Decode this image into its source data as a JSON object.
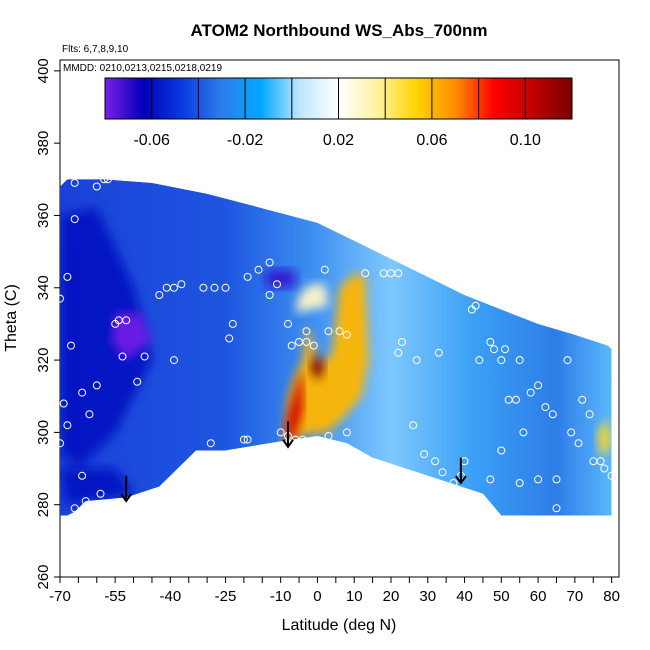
{
  "chart_data": {
    "type": "heatmap",
    "title": "ATOM2 Northbound WS_Abs_700nm",
    "flights_label": "Flts: 6,7,8,9,10",
    "dates_label": "MMDD: 0210,0213,0215,0218,0219",
    "xlabel": "Latitude (deg N)",
    "ylabel": "Theta (C)",
    "xlim": [
      -70,
      82
    ],
    "ylim": [
      260,
      403
    ],
    "x_ticks": [
      -70,
      -55,
      -40,
      -25,
      -10,
      0,
      10,
      20,
      30,
      40,
      50,
      60,
      70,
      80
    ],
    "x_tick_labels": [
      "-70",
      "-55",
      "-40",
      "-25",
      "-10",
      "0",
      "10",
      "20",
      "30",
      "40",
      "50",
      "60",
      "70",
      "80"
    ],
    "y_ticks": [
      260,
      280,
      300,
      320,
      340,
      360,
      380,
      400
    ],
    "y_tick_labels": [
      "260",
      "280",
      "300",
      "320",
      "340",
      "360",
      "380",
      "400"
    ],
    "colorbar": {
      "range": [
        -0.08,
        0.12
      ],
      "ticks": [
        -0.06,
        -0.02,
        0.02,
        0.06,
        0.1
      ],
      "tick_labels": [
        "-0.06",
        "-0.02",
        "0.02",
        "0.06",
        "0.10"
      ],
      "colors": [
        "#7a1fe8",
        "#0000b8",
        "#0a3ce0",
        "#2e7de8",
        "#00a8ff",
        "#bfe6ff",
        "#ffffff",
        "#fff2a0",
        "#ffd400",
        "#ff8c00",
        "#ff0000",
        "#c00000",
        "#7a0000"
      ]
    },
    "upper_boundary": [
      [
        -70,
        368
      ],
      [
        -68,
        370
      ],
      [
        -58,
        370
      ],
      [
        -45,
        369
      ],
      [
        -30,
        366
      ],
      [
        -15,
        362
      ],
      [
        0,
        358
      ],
      [
        10,
        353
      ],
      [
        20,
        348
      ],
      [
        30,
        343
      ],
      [
        40,
        338
      ],
      [
        50,
        334
      ],
      [
        60,
        330
      ],
      [
        70,
        327
      ],
      [
        79,
        324
      ],
      [
        80,
        323
      ]
    ],
    "lower_boundary": [
      [
        80,
        277
      ],
      [
        50,
        277
      ],
      [
        45,
        283
      ],
      [
        30,
        288
      ],
      [
        15,
        293
      ],
      [
        8,
        297
      ],
      [
        0,
        299
      ],
      [
        -10,
        297.5
      ],
      [
        -25,
        295
      ],
      [
        -33,
        295
      ],
      [
        -43,
        285
      ],
      [
        -52,
        282
      ],
      [
        -63,
        281
      ],
      [
        -66,
        278
      ],
      [
        -68,
        277
      ],
      [
        -70,
        277
      ]
    ],
    "hot_patches": [
      {
        "polygon": [
          [
            -9,
            297
          ],
          [
            -8,
            310
          ],
          [
            -6,
            316
          ],
          [
            -4,
            320
          ],
          [
            -3,
            330
          ],
          [
            -1,
            324
          ],
          [
            0,
            318
          ],
          [
            4,
            322
          ],
          [
            6,
            340
          ],
          [
            10,
            344
          ],
          [
            13,
            343
          ],
          [
            14,
            320
          ],
          [
            12,
            310
          ],
          [
            8,
            305
          ],
          [
            3,
            300
          ],
          [
            -3,
            299.5
          ]
        ],
        "value": 0.06
      },
      {
        "polygon": [
          [
            -9,
            298
          ],
          [
            -8,
            305
          ],
          [
            -6,
            312
          ],
          [
            -4,
            318
          ],
          [
            -4,
            306
          ],
          [
            -6,
            299
          ]
        ],
        "value": 0.1
      },
      {
        "polygon": [
          [
            -2,
            318
          ],
          [
            0,
            322
          ],
          [
            2,
            318
          ],
          [
            0,
            314
          ]
        ],
        "value": 0.12
      },
      {
        "polygon": [
          [
            76,
            300
          ],
          [
            79,
            304
          ],
          [
            80,
            296
          ],
          [
            77,
            293
          ]
        ],
        "value": 0.05
      },
      {
        "polygon": [
          [
            -6,
            333
          ],
          [
            -5,
            338
          ],
          [
            -2,
            341
          ],
          [
            2,
            341
          ],
          [
            3,
            335
          ]
        ],
        "value": 0.03
      }
    ],
    "cold_patches": [
      {
        "polygon": [
          [
            -70,
            360
          ],
          [
            -60,
            362
          ],
          [
            -50,
            340
          ],
          [
            -45,
            320
          ],
          [
            -55,
            300
          ],
          [
            -65,
            290
          ],
          [
            -70,
            295
          ]
        ],
        "value": -0.06
      },
      {
        "polygon": [
          [
            -55,
            333
          ],
          [
            -48,
            333
          ],
          [
            -45,
            325
          ],
          [
            -52,
            320
          ],
          [
            -56,
            325
          ]
        ],
        "value": -0.08
      },
      {
        "polygon": [
          [
            -14,
            345
          ],
          [
            -6,
            345
          ],
          [
            -6,
            340
          ],
          [
            -14,
            340
          ]
        ],
        "value": -0.07
      },
      {
        "polygon": [
          [
            -70,
            290
          ],
          [
            -55,
            290
          ],
          [
            -50,
            283
          ],
          [
            -68,
            280
          ]
        ],
        "value": -0.06
      }
    ],
    "points": [
      [
        -66,
        369
      ],
      [
        -58,
        370
      ],
      [
        -60,
        368
      ],
      [
        -57,
        370
      ],
      [
        -66,
        359
      ],
      [
        -68,
        343
      ],
      [
        -70,
        337
      ],
      [
        -67,
        324
      ],
      [
        -69,
        308
      ],
      [
        -68,
        302
      ],
      [
        -70,
        297
      ],
      [
        -64,
        311
      ],
      [
        -62,
        305
      ],
      [
        -60,
        313
      ],
      [
        -64,
        288
      ],
      [
        -59,
        283
      ],
      [
        -63,
        281
      ],
      [
        -66,
        279
      ],
      [
        -54,
        331
      ],
      [
        -52,
        331
      ],
      [
        -55,
        330
      ],
      [
        -53,
        321
      ],
      [
        -47,
        321
      ],
      [
        -49,
        314
      ],
      [
        -43,
        338
      ],
      [
        -41,
        340
      ],
      [
        -39,
        340
      ],
      [
        -37,
        341
      ],
      [
        -31,
        340
      ],
      [
        -28,
        340
      ],
      [
        -25,
        340
      ],
      [
        -39,
        320
      ],
      [
        -29,
        297
      ],
      [
        -24,
        326
      ],
      [
        -23,
        330
      ],
      [
        -19,
        343
      ],
      [
        -16,
        345
      ],
      [
        -13,
        347
      ],
      [
        -13,
        338
      ],
      [
        -19,
        298
      ],
      [
        -8,
        330
      ],
      [
        -7,
        324
      ],
      [
        -5,
        325
      ],
      [
        -3,
        325
      ],
      [
        -1,
        324
      ],
      [
        -3,
        328
      ],
      [
        2,
        345
      ],
      [
        3,
        328
      ],
      [
        6,
        328
      ],
      [
        8,
        327
      ],
      [
        13,
        344
      ],
      [
        18,
        344
      ],
      [
        20,
        344
      ],
      [
        22,
        344
      ],
      [
        -11,
        341
      ],
      [
        -10,
        300
      ],
      [
        -8,
        299
      ],
      [
        -4,
        298
      ],
      [
        3,
        299
      ],
      [
        8,
        300
      ],
      [
        -20,
        298
      ],
      [
        -6,
        298
      ],
      [
        22,
        322
      ],
      [
        23,
        325
      ],
      [
        26,
        302
      ],
      [
        29,
        294
      ],
      [
        32,
        292
      ],
      [
        33,
        322
      ],
      [
        40,
        292
      ],
      [
        42,
        334
      ],
      [
        43,
        335
      ],
      [
        44,
        320
      ],
      [
        47,
        325
      ],
      [
        48,
        323
      ],
      [
        50,
        320
      ],
      [
        51,
        323
      ],
      [
        52,
        309
      ],
      [
        54,
        309
      ],
      [
        55,
        320
      ],
      [
        56,
        300
      ],
      [
        58,
        311
      ],
      [
        60,
        313
      ],
      [
        62,
        307
      ],
      [
        64,
        305
      ],
      [
        65,
        287
      ],
      [
        68,
        320
      ],
      [
        69,
        300
      ],
      [
        71,
        297
      ],
      [
        72,
        309
      ],
      [
        74,
        305
      ],
      [
        75,
        292
      ],
      [
        77,
        292
      ],
      [
        78,
        290
      ],
      [
        80,
        288
      ],
      [
        47,
        287
      ],
      [
        55,
        286
      ],
      [
        60,
        287
      ],
      [
        65,
        279
      ],
      [
        34,
        289
      ],
      [
        37,
        286
      ],
      [
        39,
        288
      ],
      [
        27,
        320
      ],
      [
        50,
        295
      ]
    ],
    "arrows": [
      {
        "x": -52,
        "y_top": 288,
        "y_bottom": 281
      },
      {
        "x": -8,
        "y_top": 303,
        "y_bottom": 296
      },
      {
        "x": 39,
        "y_top": 293,
        "y_bottom": 286
      }
    ]
  }
}
